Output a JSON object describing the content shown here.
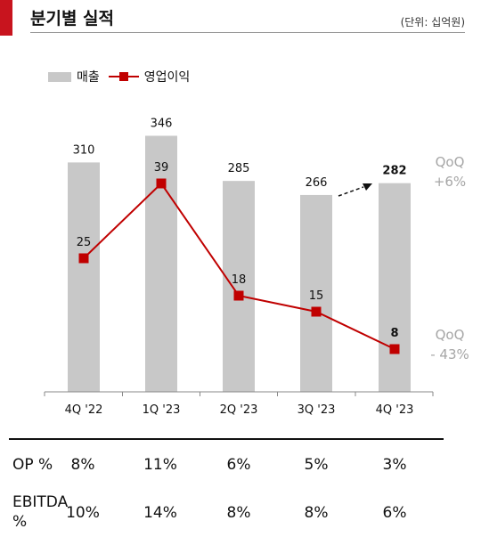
{
  "header": {
    "title": "분기별 실적",
    "unit": "(단위: 십억원)"
  },
  "legend": {
    "sales": "매출",
    "op": "영업이익"
  },
  "colors": {
    "bar": "#c8c8c8",
    "line": "#c00000",
    "accent": "#c8141e",
    "note": "#a6a6a6"
  },
  "chart_data": {
    "type": "bar",
    "categories": [
      "4Q '22",
      "1Q '23",
      "2Q '23",
      "3Q '23",
      "4Q '23"
    ],
    "series": [
      {
        "name": "매출",
        "type": "bar",
        "values": [
          310,
          346,
          285,
          266,
          282
        ],
        "labels": [
          "310",
          "346",
          "285",
          "266",
          "282"
        ]
      },
      {
        "name": "영업이익",
        "type": "line",
        "values": [
          25,
          39,
          18,
          15,
          8
        ],
        "labels": [
          "25",
          "39",
          "18",
          "15",
          "8"
        ]
      }
    ],
    "annotations": [
      {
        "text": "QoQ",
        "line2": "+6%"
      },
      {
        "text": "QoQ",
        "line2": "- 43%"
      }
    ],
    "ylim": [
      0,
      380
    ],
    "grid": false
  },
  "table": {
    "rows": [
      {
        "label": "OP %",
        "label2": "",
        "values": [
          "8%",
          "11%",
          "6%",
          "5%",
          "3%"
        ]
      },
      {
        "label": "EBITDA",
        "label2": "%",
        "values": [
          "10%",
          "14%",
          "8%",
          "8%",
          "6%"
        ]
      }
    ]
  }
}
